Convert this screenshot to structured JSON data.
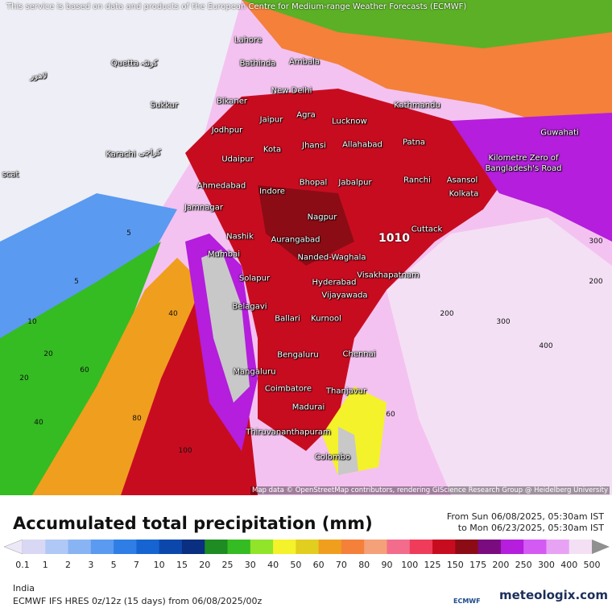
{
  "header": {
    "notice": "This service is based on data and products of the European Centre for Medium-range Weather Forecasts (ECMWF)"
  },
  "map": {
    "cities": [
      "Lahore",
      "Quetta",
      "Bathinda",
      "Ambala",
      "New Delhi",
      "Sukkur",
      "Bikaner",
      "Kathmandu",
      "Jaipur",
      "Agra",
      "Lucknow",
      "Guwahati",
      "Jodhpur",
      "Karachi",
      "Kota",
      "Jhansi",
      "Allahabad",
      "Patna",
      "Kilometre Zero of Bangladesh's Road",
      "Udaipur",
      "Bhopal",
      "Jabalpur",
      "Ranchi",
      "Asansol",
      "Ahmedabad",
      "Indore",
      "Kolkata",
      "Jamnagar",
      "Nagpur",
      "Cuttack",
      "Nashik",
      "Aurangabad",
      "Mumbai",
      "Nanded-Waghala",
      "Visakhapatnam",
      "Solapur",
      "Hyderabad",
      "Vijayawada",
      "Belagavi",
      "Ballari",
      "Kurnool",
      "Bengaluru",
      "Chennai",
      "Mangaluru",
      "Coimbatore",
      "Thanjavur",
      "Madurai",
      "Thiruvananthapuram",
      "Colombo",
      "scat",
      "کوئٹہ",
      "لاهور",
      "کراچی"
    ],
    "pressure_label": "1010",
    "contour_labels": [
      "5",
      "5",
      "10",
      "20",
      "40",
      "60",
      "80",
      "100",
      "200",
      "300",
      "400",
      "300",
      "200",
      "60",
      "40",
      "20"
    ],
    "attribution": "Map data © OpenStreetMap contributors, rendering GIScience Research Group @ Heidelberg University"
  },
  "legend": {
    "title": "Accumulated total precipitation (mm)",
    "from": "From Sun 06/08/2025, 05:30am IST",
    "to": "to Mon 06/23/2025, 05:30am IST",
    "values": [
      0.1,
      1,
      2,
      3,
      5,
      7,
      10,
      15,
      20,
      25,
      30,
      40,
      50,
      60,
      70,
      80,
      90,
      100,
      125,
      150,
      175,
      200,
      250,
      300,
      400,
      500
    ],
    "colors": [
      "#ece8f8",
      "#d8d8f4",
      "#b0c8f6",
      "#88b4f4",
      "#5a9af0",
      "#2e7ee6",
      "#1664d2",
      "#0c48ac",
      "#0a2e80",
      "#1e8c22",
      "#34bc22",
      "#90e42a",
      "#f4f22a",
      "#e2ce1e",
      "#f09e1e",
      "#f4803a",
      "#f4a078",
      "#f46c8c",
      "#ee3c5a",
      "#c80c20",
      "#8c0c16",
      "#7a0c80",
      "#b41edc",
      "#d45af4",
      "#e8a2f4",
      "#f4e0f4",
      "#c8c8c8",
      "#909090"
    ]
  },
  "footer": {
    "region": "India",
    "model": "ECMWF IFS HRES 0z/12z (15 days) from 06/08/2025/00z",
    "logo_left": "ECMWF",
    "logo_right": "meteologix.com"
  }
}
